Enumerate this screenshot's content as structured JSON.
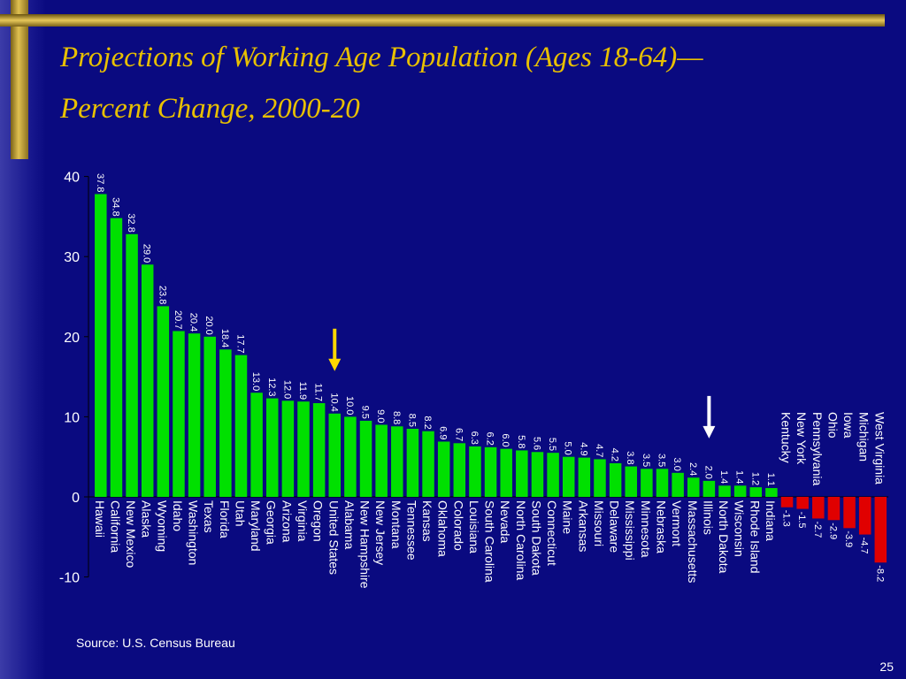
{
  "slide": {
    "title_line1": "Projections of Working Age Population (Ages 18-64)—",
    "title_line2": "Percent Change, 2000-20",
    "source": "Source:  U.S. Census Bureau",
    "page_number": "25"
  },
  "colors": {
    "background": "#0a0a80",
    "title": "#e8c000",
    "positive_bar": "#00e000",
    "negative_bar": "#e00000",
    "arrow_highlight": "#ffd700",
    "arrow_plain": "#ffffff"
  },
  "chart_data": {
    "type": "bar",
    "title": "Projections of Working Age Population (Ages 18-64)—Percent Change, 2000-20",
    "ylim": [
      -10,
      40
    ],
    "yticks": [
      "-10",
      "0",
      "10",
      "20",
      "30",
      "40"
    ],
    "grid": false,
    "categories": [
      "Hawaii",
      "California",
      "New Mexico",
      "Alaska",
      "Wyoming",
      "Idaho",
      "Washington",
      "Texas",
      "Florida",
      "Utah",
      "Maryland",
      "Georgia",
      "Arizona",
      "Virginia",
      "Oregon",
      "United States",
      "Alabama",
      "New Hampshire",
      "New Jersey",
      "Montana",
      "Tennessee",
      "Kansas",
      "Oklahoma",
      "Colorado",
      "Louisiana",
      "South Carolina",
      "Nevada",
      "North Carolina",
      "South Dakota",
      "Connecticut",
      "Maine",
      "Arkansas",
      "Missouri",
      "Delaware",
      "Mississippi",
      "Minnesota",
      "Nebraska",
      "Vermont",
      "Massachusetts",
      "Illinois",
      "North Dakota",
      "Wisconsin",
      "Rhode Island",
      "Indiana",
      "Kentucky",
      "New York",
      "Pennsylvania",
      "Ohio",
      "Iowa",
      "Michigan",
      "West Virginia"
    ],
    "values": [
      37.8,
      34.8,
      32.8,
      29.0,
      23.8,
      20.7,
      20.4,
      20.0,
      18.4,
      17.7,
      13.0,
      12.3,
      12.0,
      11.9,
      11.7,
      10.4,
      10.0,
      9.5,
      9.0,
      8.8,
      8.5,
      8.2,
      6.9,
      6.7,
      6.3,
      6.2,
      6.0,
      5.8,
      5.6,
      5.5,
      5.0,
      4.9,
      4.7,
      4.2,
      3.8,
      3.5,
      3.5,
      3.0,
      2.4,
      2.0,
      1.4,
      1.4,
      1.2,
      1.1,
      -1.3,
      -1.5,
      -2.7,
      -2.9,
      -3.9,
      -4.7,
      -8.2
    ],
    "value_labels": [
      "37.8",
      "34.8",
      "32.8",
      "29.0",
      "23.8",
      "20.7",
      "20.4",
      "20.0",
      "18.4",
      "17.7",
      "13.0",
      "12.3",
      "12.0",
      "11.9",
      "11.7",
      "10.4",
      "10.0",
      "9.5",
      "9.0",
      "8.8",
      "8.5",
      "8.2",
      "6.9",
      "6.7",
      "6.3",
      "6.2",
      "6.0",
      "5.8",
      "5.6",
      "5.5",
      "5.0",
      "4.9",
      "4.7",
      "4.2",
      "3.8",
      "3.5",
      "3.5",
      "3.0",
      "2.4",
      "2.0",
      "1.4",
      "1.4",
      "1.2",
      "1.1",
      "-1.3",
      "-1.5",
      "-2.7",
      "-2.9",
      "-3.9",
      "-4.7",
      "-8.2"
    ],
    "annotations": [
      {
        "type": "arrow",
        "category": "United States",
        "color": "yellow"
      },
      {
        "type": "arrow",
        "category": "Illinois",
        "color": "white"
      }
    ]
  }
}
